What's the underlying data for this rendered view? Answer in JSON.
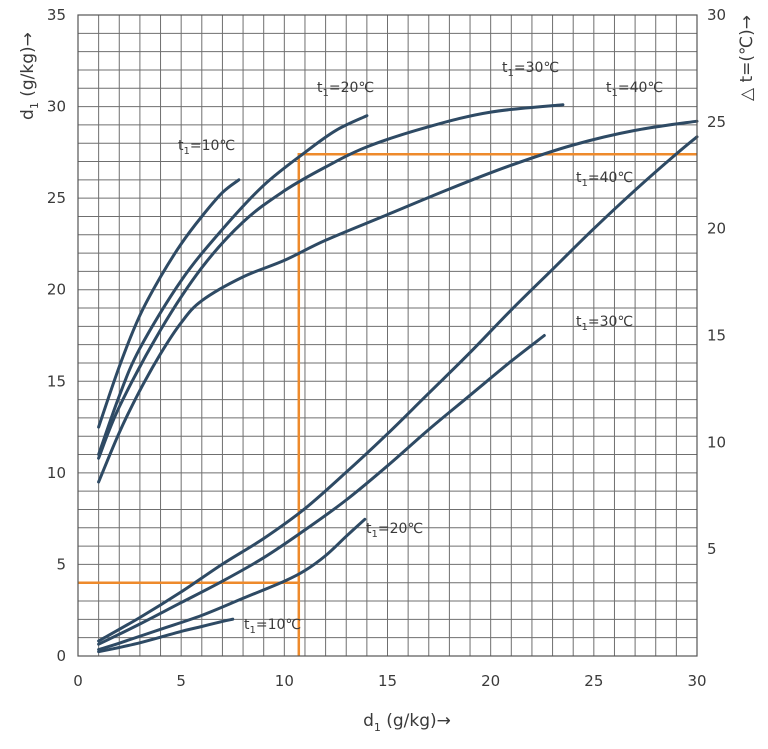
{
  "chart_data": {
    "type": "line",
    "xlabel": "d",
    "xlabel_sub": "1",
    "xlabel_unit": " (g/kg)→",
    "ylabel": "d",
    "ylabel_sub": "1",
    "ylabel_unit": " (g/kg)→",
    "y2label": "△ t=(℃)→",
    "xlim": [
      0,
      30
    ],
    "ylim": [
      0,
      35
    ],
    "y2lim": [
      0,
      30
    ],
    "x_ticks": [
      0,
      5,
      10,
      15,
      20,
      25,
      30
    ],
    "y_ticks": [
      0,
      5,
      10,
      15,
      20,
      25,
      30,
      35
    ],
    "y2_ticks": [
      5,
      10,
      15,
      20,
      25,
      30
    ],
    "grid": true,
    "colors": {
      "series": "#2e4a64",
      "guide": "#ee8a2b",
      "grid": "#6f6f6f"
    },
    "series": [
      {
        "name": "t₁=10℃",
        "axis": "left",
        "points": [
          [
            1.0,
            12.5
          ],
          [
            2.0,
            15.8
          ],
          [
            3.0,
            18.6
          ],
          [
            4.0,
            20.7
          ],
          [
            5.0,
            22.5
          ],
          [
            6.0,
            24.0
          ],
          [
            7.0,
            25.3
          ],
          [
            7.8,
            26.0
          ]
        ]
      },
      {
        "name": "t₁=20℃",
        "axis": "left",
        "points": [
          [
            1.0,
            11.0
          ],
          [
            2.0,
            14.2
          ],
          [
            3.0,
            16.8
          ],
          [
            5.0,
            20.5
          ],
          [
            7.0,
            23.3
          ],
          [
            9.0,
            25.7
          ],
          [
            11.0,
            27.5
          ],
          [
            12.5,
            28.7
          ],
          [
            14.0,
            29.5
          ]
        ]
      },
      {
        "name": "t₁=30℃",
        "axis": "left",
        "points": [
          [
            1.0,
            10.8
          ],
          [
            2.0,
            13.6
          ],
          [
            4.0,
            17.8
          ],
          [
            6.0,
            21.2
          ],
          [
            8.0,
            23.7
          ],
          [
            10.0,
            25.4
          ],
          [
            12.0,
            26.7
          ],
          [
            14.0,
            27.8
          ],
          [
            17.0,
            28.9
          ],
          [
            20.0,
            29.7
          ],
          [
            23.5,
            30.1
          ]
        ]
      },
      {
        "name": "t₁=40℃",
        "axis": "left",
        "points": [
          [
            1.0,
            9.5
          ],
          [
            2.0,
            12.2
          ],
          [
            3.0,
            14.5
          ],
          [
            4.0,
            16.5
          ],
          [
            5.0,
            18.2
          ],
          [
            6.0,
            19.4
          ],
          [
            8.0,
            20.7
          ],
          [
            10.0,
            21.6
          ],
          [
            12.0,
            22.7
          ],
          [
            15.0,
            24.1
          ],
          [
            18.0,
            25.5
          ],
          [
            21.0,
            26.8
          ],
          [
            24.0,
            27.9
          ],
          [
            27.0,
            28.7
          ],
          [
            30.0,
            29.2
          ]
        ]
      },
      {
        "name": "t₁=10℃",
        "axis": "right",
        "points": [
          [
            1.0,
            0.2
          ],
          [
            2.0,
            0.4
          ],
          [
            3.0,
            0.62
          ],
          [
            4.0,
            0.88
          ],
          [
            5.0,
            1.15
          ],
          [
            6.0,
            1.38
          ],
          [
            7.0,
            1.62
          ],
          [
            7.5,
            1.72
          ]
        ]
      },
      {
        "name": "t₁=20℃",
        "axis": "right",
        "points": [
          [
            1.0,
            0.3
          ],
          [
            2.0,
            0.6
          ],
          [
            4.0,
            1.25
          ],
          [
            6.0,
            1.9
          ],
          [
            8.0,
            2.7
          ],
          [
            10.0,
            3.5
          ],
          [
            11.0,
            4.0
          ],
          [
            12.0,
            4.7
          ],
          [
            13.0,
            5.6
          ],
          [
            13.9,
            6.4
          ]
        ]
      },
      {
        "name": "t₁=30℃",
        "axis": "right",
        "points": [
          [
            1.0,
            0.55
          ],
          [
            3.0,
            1.5
          ],
          [
            5.0,
            2.5
          ],
          [
            7.0,
            3.5
          ],
          [
            9.0,
            4.6
          ],
          [
            11.0,
            5.9
          ],
          [
            13.0,
            7.3
          ],
          [
            15.0,
            8.9
          ],
          [
            17.0,
            10.6
          ],
          [
            19.0,
            12.2
          ],
          [
            21.0,
            13.8
          ],
          [
            22.6,
            15.0
          ]
        ]
      },
      {
        "name": "t₁=40℃",
        "axis": "right",
        "points": [
          [
            1.0,
            0.7
          ],
          [
            3.0,
            1.8
          ],
          [
            5.0,
            3.0
          ],
          [
            7.0,
            4.3
          ],
          [
            9.0,
            5.5
          ],
          [
            11.0,
            6.9
          ],
          [
            13.0,
            8.6
          ],
          [
            15.0,
            10.4
          ],
          [
            17.0,
            12.3
          ],
          [
            19.0,
            14.2
          ],
          [
            21.0,
            16.2
          ],
          [
            23.0,
            18.1
          ],
          [
            25.0,
            20.0
          ],
          [
            27.0,
            21.8
          ],
          [
            29.0,
            23.5
          ],
          [
            30.0,
            24.3
          ]
        ]
      }
    ],
    "labels": [
      {
        "series": 0,
        "sub": "1",
        "rest": "=10℃"
      },
      {
        "series": 1,
        "sub": "1",
        "rest": "=20℃"
      },
      {
        "series": 2,
        "sub": "1",
        "rest": "=30℃"
      },
      {
        "series": 3,
        "sub": "1",
        "rest": "=40℃"
      },
      {
        "series": 4,
        "sub": "1",
        "rest": "=10℃"
      },
      {
        "series": 5,
        "sub": "1",
        "rest": "=20℃"
      },
      {
        "series": 6,
        "sub": "1",
        "rest": "=30℃"
      },
      {
        "series": 7,
        "sub": "1",
        "rest": "=40℃"
      }
    ],
    "guide_lines": [
      {
        "points": [
          [
            0,
            4.0
          ],
          [
            10.7,
            4.0
          ],
          [
            10.7,
            27.4
          ],
          [
            30.0,
            27.4
          ]
        ]
      },
      {
        "points": [
          [
            10.7,
            0
          ],
          [
            10.7,
            4.0
          ]
        ]
      }
    ]
  }
}
